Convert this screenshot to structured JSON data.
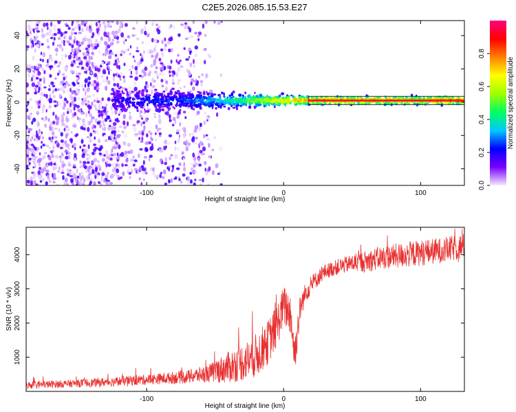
{
  "title": "C2E5.2026.085.15.53.E27",
  "chart_data": [
    {
      "type": "heatmap",
      "name": "spectrogram",
      "xlabel": "Height of straight line (km)",
      "ylabel": "Frequency (Hz)",
      "xlim": [
        -188,
        132
      ],
      "ylim": [
        -50,
        49
      ],
      "x_ticks": [
        -100,
        0,
        100
      ],
      "x_tick_labels": [
        "-100",
        "0",
        "100"
      ],
      "y_ticks": [
        -40,
        -20,
        0,
        20,
        40
      ],
      "y_tick_labels": [
        "-40",
        "-20",
        "0",
        "20",
        "40"
      ],
      "colorbar": {
        "label": "Normalized spectral amplitude",
        "range": [
          0,
          1
        ],
        "ticks": [
          0.0,
          0.2,
          0.4,
          0.6,
          0.8
        ],
        "tick_labels": [
          "0.0",
          "0.2",
          "0.4",
          "0.6",
          "0.8"
        ],
        "colors": [
          "#f4eaff",
          "#7a00ff",
          "#0000ff",
          "#00c8ff",
          "#00ff60",
          "#a0ff00",
          "#ffff00",
          "#ff8000",
          "#ff0000",
          "#ff0080"
        ]
      },
      "scatter_noise_region_km": [
        -188,
        -55
      ],
      "carrier_band": {
        "x_start_km": 18,
        "x_end_km": 132,
        "center_hz": 1,
        "half_width_hz": 2.5,
        "color": "#2a2a2a"
      },
      "signal_profile": [
        {
          "x": -125,
          "amp": 0.22
        },
        {
          "x": -100,
          "amp": 0.28
        },
        {
          "x": -75,
          "amp": 0.3
        },
        {
          "x": -50,
          "amp": 0.4
        },
        {
          "x": -30,
          "amp": 0.52
        },
        {
          "x": -15,
          "amp": 0.66
        },
        {
          "x": 0,
          "amp": 0.76
        },
        {
          "x": 15,
          "amp": 0.84
        },
        {
          "x": 40,
          "amp": 0.88
        },
        {
          "x": 80,
          "amp": 0.82
        },
        {
          "x": 110,
          "amp": 0.86
        },
        {
          "x": 132,
          "amp": 0.9
        }
      ]
    },
    {
      "type": "line",
      "name": "snr",
      "xlabel": "Height of straight line (km)",
      "ylabel": "SNR (10 * v/v)",
      "xlim": [
        -188,
        132
      ],
      "ylim": [
        0,
        4800
      ],
      "x_ticks": [
        -100,
        0,
        100
      ],
      "x_tick_labels": [
        "-100",
        "0",
        "100"
      ],
      "y_ticks": [
        1000,
        2000,
        3000,
        4000
      ],
      "y_tick_labels": [
        "1000",
        "2000",
        "3000",
        "4000"
      ],
      "color": "#e83030",
      "series": [
        {
          "name": "SNR",
          "x": [
            -188,
            -160,
            -130,
            -110,
            -90,
            -70,
            -55,
            -42,
            -30,
            -20,
            -12,
            -5,
            0,
            5,
            8,
            12,
            16,
            22,
            30,
            40,
            50,
            60,
            70,
            80,
            90,
            100,
            110,
            120,
            132
          ],
          "y": [
            180,
            220,
            270,
            320,
            370,
            430,
            520,
            680,
            850,
            1050,
            1400,
            1900,
            2500,
            2300,
            1050,
            2400,
            2900,
            3200,
            3500,
            3650,
            3750,
            3800,
            3900,
            3950,
            4000,
            4050,
            4100,
            4150,
            4250
          ],
          "spread": [
            110,
            110,
            130,
            150,
            160,
            200,
            260,
            450,
            550,
            650,
            650,
            650,
            600,
            650,
            650,
            400,
            300,
            250,
            220,
            230,
            260,
            320,
            340,
            360,
            380,
            380,
            380,
            380,
            380
          ]
        }
      ]
    }
  ]
}
